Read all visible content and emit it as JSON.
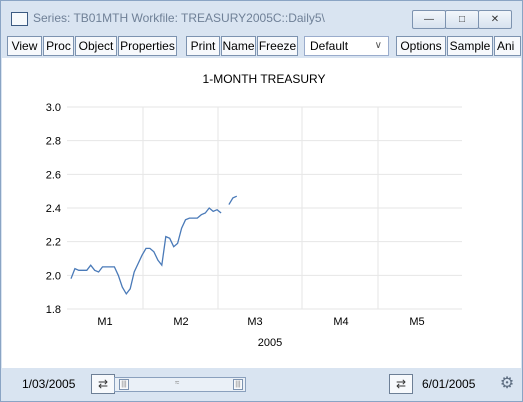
{
  "window": {
    "title": "Series: TB01MTH   Workfile: TREASURY2005C::Daily5\\",
    "icon": "series-window-icon",
    "controls": [
      {
        "name": "minimize-button",
        "glyph": "—"
      },
      {
        "name": "maximize-button",
        "glyph": "□"
      },
      {
        "name": "close-button",
        "glyph": "✕"
      }
    ]
  },
  "toolbar": {
    "view": "View",
    "proc": "Proc",
    "object": "Object",
    "properties": "Properties",
    "print": "Print",
    "name": "Name",
    "freeze": "Freeze",
    "dropdown_value": "Default",
    "options": "Options",
    "sample": "Sample",
    "ani": "Ani"
  },
  "chart_data": {
    "type": "line",
    "title": "1-MONTH TREASURY",
    "xlabel": "2005",
    "ylabel": "",
    "xlim": [
      0,
      100
    ],
    "ylim": [
      1.8,
      3.0
    ],
    "yticks": [
      "3.0",
      "2.8",
      "2.6",
      "2.4",
      "2.2",
      "2.0",
      "1.8"
    ],
    "xticks": [
      "M1",
      "M2",
      "M3",
      "M4",
      "M5"
    ],
    "line_color": "#4a7ab8",
    "grid": true,
    "series": [
      {
        "values": [
          [
            1,
            1.98
          ],
          [
            2,
            2.04
          ],
          [
            3,
            2.03
          ],
          [
            4,
            2.03
          ],
          [
            5,
            2.03
          ],
          [
            6,
            2.06
          ],
          [
            7,
            2.03
          ],
          [
            8,
            2.02
          ],
          [
            9,
            2.05
          ],
          [
            10,
            2.05
          ],
          [
            11,
            2.05
          ],
          [
            12,
            2.05
          ],
          [
            13,
            2.0
          ],
          [
            14,
            1.93
          ],
          [
            15,
            1.89
          ],
          [
            16,
            1.92
          ],
          [
            17,
            2.02
          ],
          [
            18,
            2.07
          ],
          [
            19,
            2.12
          ],
          [
            20,
            2.16
          ],
          [
            21,
            2.16
          ],
          [
            22,
            2.14
          ],
          [
            23,
            2.09
          ],
          [
            24,
            2.06
          ],
          [
            25,
            2.23
          ],
          [
            26,
            2.22
          ],
          [
            27,
            2.17
          ],
          [
            28,
            2.19
          ],
          [
            29,
            2.28
          ],
          [
            30,
            2.33
          ],
          [
            31,
            2.34
          ],
          [
            32,
            2.34
          ],
          [
            33,
            2.34
          ],
          [
            34,
            2.36
          ],
          [
            35,
            2.37
          ],
          [
            36,
            2.4
          ],
          [
            37,
            2.38
          ],
          [
            38,
            2.39
          ],
          [
            39,
            2.37
          ],
          null,
          [
            41,
            2.42
          ],
          [
            42,
            2.46
          ],
          [
            43,
            2.47
          ]
        ]
      }
    ]
  },
  "status": {
    "start_date": "1/03/2005",
    "end_date": "6/01/2005",
    "slider_glyph": "≈",
    "left_arrows": "⇄",
    "right_arrows": "⇄",
    "gear": "⚙"
  }
}
